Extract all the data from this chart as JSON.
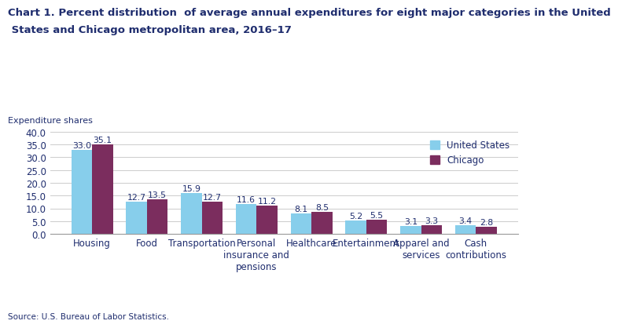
{
  "title_line1": "Chart 1. Percent distribution  of average annual expenditures for eight major categories in the United",
  "title_line2": " States and Chicago metropolitan area, 2016–17",
  "ylabel": "Expenditure shares",
  "source": "Source: U.S. Bureau of Labor Statistics.",
  "categories": [
    "Housing",
    "Food",
    "Transportation",
    "Personal\ninsurance and\npensions",
    "Healthcare",
    "Entertainment",
    "Apparel and\nservices",
    "Cash\ncontributions"
  ],
  "us_values": [
    33.0,
    12.7,
    15.9,
    11.6,
    8.1,
    5.2,
    3.1,
    3.4
  ],
  "chicago_values": [
    35.1,
    13.5,
    12.7,
    11.2,
    8.5,
    5.5,
    3.3,
    2.8
  ],
  "us_color": "#87CEEB",
  "chicago_color": "#7B2D5E",
  "ylim": [
    0,
    40.0
  ],
  "yticks": [
    0.0,
    5.0,
    10.0,
    15.0,
    20.0,
    25.0,
    30.0,
    35.0,
    40.0
  ],
  "legend_labels": [
    "United States",
    "Chicago"
  ],
  "bar_width": 0.38,
  "title_fontsize": 9.5,
  "label_fontsize": 8,
  "tick_fontsize": 8.5,
  "value_fontsize": 7.8,
  "title_color": "#1F2D6E",
  "text_color": "#1F2D6E"
}
